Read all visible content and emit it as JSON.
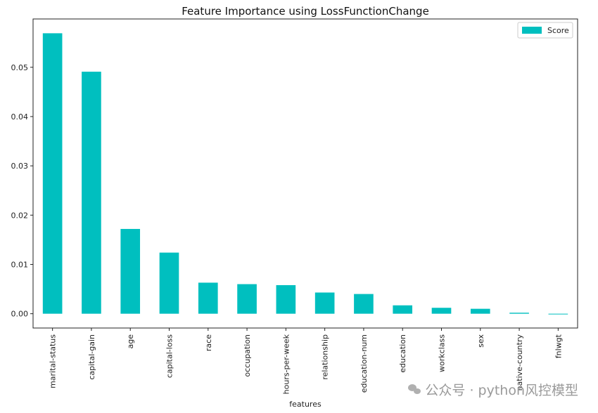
{
  "watermark": {
    "text": "公众号 · python风控模型"
  },
  "chart_data": {
    "type": "bar",
    "title": "Feature Importance using LossFunctionChange",
    "xlabel": "features",
    "ylabel": "",
    "categories": [
      "marital-status",
      "capital-gain",
      "age",
      "capital-loss",
      "race",
      "occupation",
      "hours-per-week",
      "relationship",
      "education-num",
      "education",
      "workclass",
      "sex",
      "native-country",
      "fnlwgt"
    ],
    "series": [
      {
        "name": "Score",
        "color": "#00bfbf",
        "values": [
          0.0569,
          0.0491,
          0.0172,
          0.0124,
          0.0063,
          0.006,
          0.0058,
          0.0043,
          0.004,
          0.0017,
          0.0012,
          0.001,
          0.0002,
          -0.0001
        ]
      }
    ],
    "yticks": [
      0.0,
      0.01,
      0.02,
      0.03,
      0.04,
      0.05
    ],
    "ytick_labels": [
      "0.00",
      "0.01",
      "0.02",
      "0.03",
      "0.04",
      "0.05"
    ],
    "ylim": [
      -0.0029,
      0.0598
    ],
    "grid": false,
    "legend_position": "top-right"
  }
}
